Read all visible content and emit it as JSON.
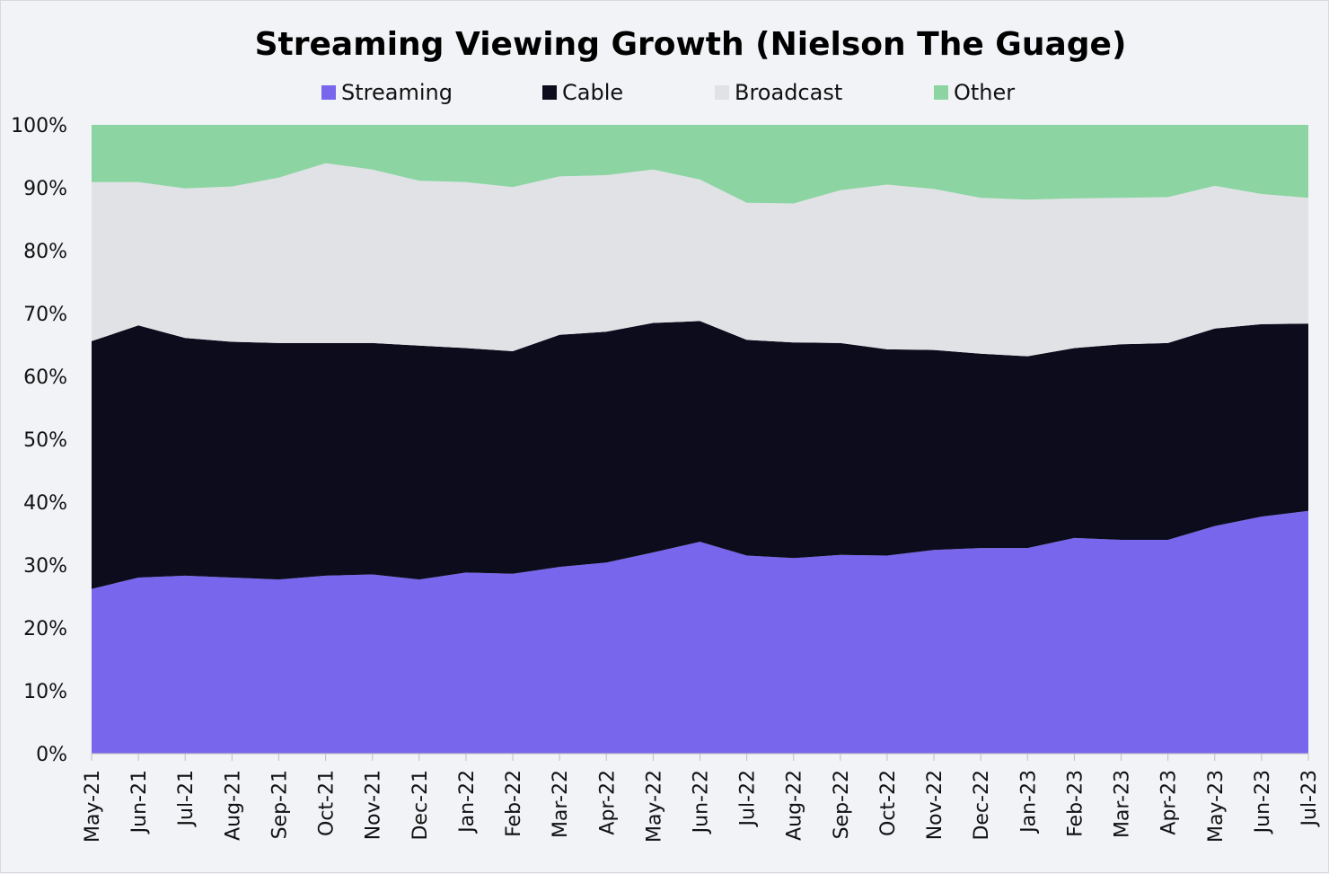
{
  "chart_data": {
    "type": "area",
    "stacked": true,
    "title": "Streaming Viewing Growth (Nielson The Guage)",
    "xlabel": "",
    "ylabel": "",
    "ylim": [
      0,
      100
    ],
    "yticks": [
      "0%",
      "10%",
      "20%",
      "30%",
      "40%",
      "50%",
      "60%",
      "70%",
      "80%",
      "90%",
      "100%"
    ],
    "categories": [
      "May-21",
      "Jun-21",
      "Jul-21",
      "Aug-21",
      "Sep-21",
      "Oct-21",
      "Nov-21",
      "Dec-21",
      "Jan-22",
      "Feb-22",
      "Mar-22",
      "Apr-22",
      "May-22",
      "Jun-22",
      "Jul-22",
      "Aug-22",
      "Sep-22",
      "Oct-22",
      "Nov-22",
      "Dec-22",
      "Jan-23",
      "Feb-23",
      "Mar-23",
      "Apr-23",
      "May-23",
      "Jun-23",
      "Jul-23"
    ],
    "legend_position": "top",
    "series": [
      {
        "name": "Streaming",
        "color": "#7866ec",
        "values": [
          26.2,
          28.0,
          28.3,
          28.0,
          27.7,
          28.3,
          28.5,
          27.7,
          28.8,
          28.6,
          29.7,
          30.4,
          32.0,
          33.7,
          31.5,
          31.1,
          31.6,
          31.5,
          32.4,
          32.7,
          32.7,
          34.3,
          34.0,
          34.0,
          36.2,
          37.7,
          38.6
        ]
      },
      {
        "name": "Cable",
        "color": "#0d0c1d",
        "values": [
          39.4,
          40.1,
          37.8,
          37.5,
          37.6,
          37.0,
          36.8,
          37.2,
          35.7,
          35.4,
          36.9,
          36.7,
          36.5,
          35.1,
          34.3,
          34.3,
          33.7,
          32.8,
          31.8,
          30.9,
          30.5,
          30.2,
          31.1,
          31.3,
          31.4,
          30.6,
          29.8
        ]
      },
      {
        "name": "Broadcast",
        "color": "#e1e2e6",
        "values": [
          25.3,
          22.8,
          23.8,
          24.7,
          26.3,
          28.6,
          27.6,
          26.2,
          26.4,
          26.1,
          25.2,
          24.9,
          24.4,
          22.5,
          21.8,
          22.1,
          24.3,
          26.2,
          25.6,
          24.8,
          24.9,
          23.8,
          23.3,
          23.2,
          22.7,
          20.7,
          20.0
        ]
      },
      {
        "name": "Other",
        "color": "#8cd5a2",
        "values": [
          9.1,
          9.1,
          10.1,
          9.8,
          8.4,
          6.1,
          7.1,
          8.9,
          9.1,
          9.9,
          8.2,
          8.0,
          7.1,
          8.7,
          12.4,
          12.5,
          10.4,
          9.5,
          10.2,
          11.6,
          11.9,
          11.7,
          11.6,
          11.5,
          9.7,
          11.0,
          11.6
        ]
      }
    ]
  }
}
